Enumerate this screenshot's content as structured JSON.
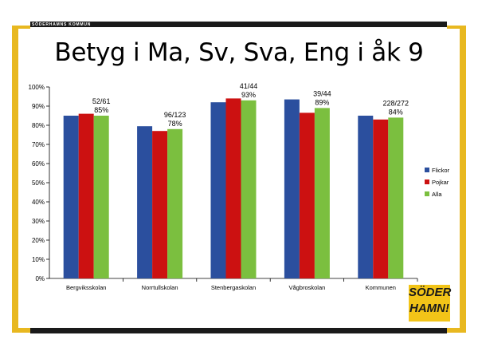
{
  "brand": {
    "top_label": "SÖDERHAMNS KOMMUN",
    "logo_line1": "SÖDER",
    "logo_line2": "HAMN!"
  },
  "colors": {
    "flickor": "#2b4f9e",
    "pojkar": "#cc1111",
    "alla": "#7bbf3f",
    "accent": "#e8b820"
  },
  "chart_data": {
    "type": "bar",
    "title": "Betyg i Ma, Sv, Sva, Eng i åk 9",
    "categories": [
      "Bergviksskolan",
      "Norrtullskolan",
      "Stenbergaskolan",
      "Vågbroskolan",
      "Kommunen"
    ],
    "series": [
      {
        "name": "Flickor",
        "values": [
          85,
          79.5,
          92,
          93.5,
          85
        ]
      },
      {
        "name": "Pojkar",
        "values": [
          86,
          77,
          94,
          86.5,
          83
        ]
      },
      {
        "name": "Alla",
        "values": [
          85,
          78,
          93,
          89,
          84
        ]
      }
    ],
    "annotations": [
      {
        "category": "Bergviksskolan",
        "line1": "52/61",
        "line2": "85%"
      },
      {
        "category": "Norrtullskolan",
        "line1": "96/123",
        "line2": "78%"
      },
      {
        "category": "Stenbergaskolan",
        "line1": "41/44",
        "line2": "93%"
      },
      {
        "category": "Vågbroskolan",
        "line1": "39/44",
        "line2": "89%"
      },
      {
        "category": "Kommunen",
        "line1": "228/272",
        "line2": "84%"
      }
    ],
    "ylim": [
      0,
      100
    ],
    "yticks": [
      "0%",
      "10%",
      "20%",
      "30%",
      "40%",
      "50%",
      "60%",
      "70%",
      "80%",
      "90%",
      "100%"
    ],
    "legend": [
      "Flickor",
      "Pojkar",
      "Alla"
    ],
    "legend_position": "right",
    "xlabel": "",
    "ylabel": "",
    "grid": false
  }
}
